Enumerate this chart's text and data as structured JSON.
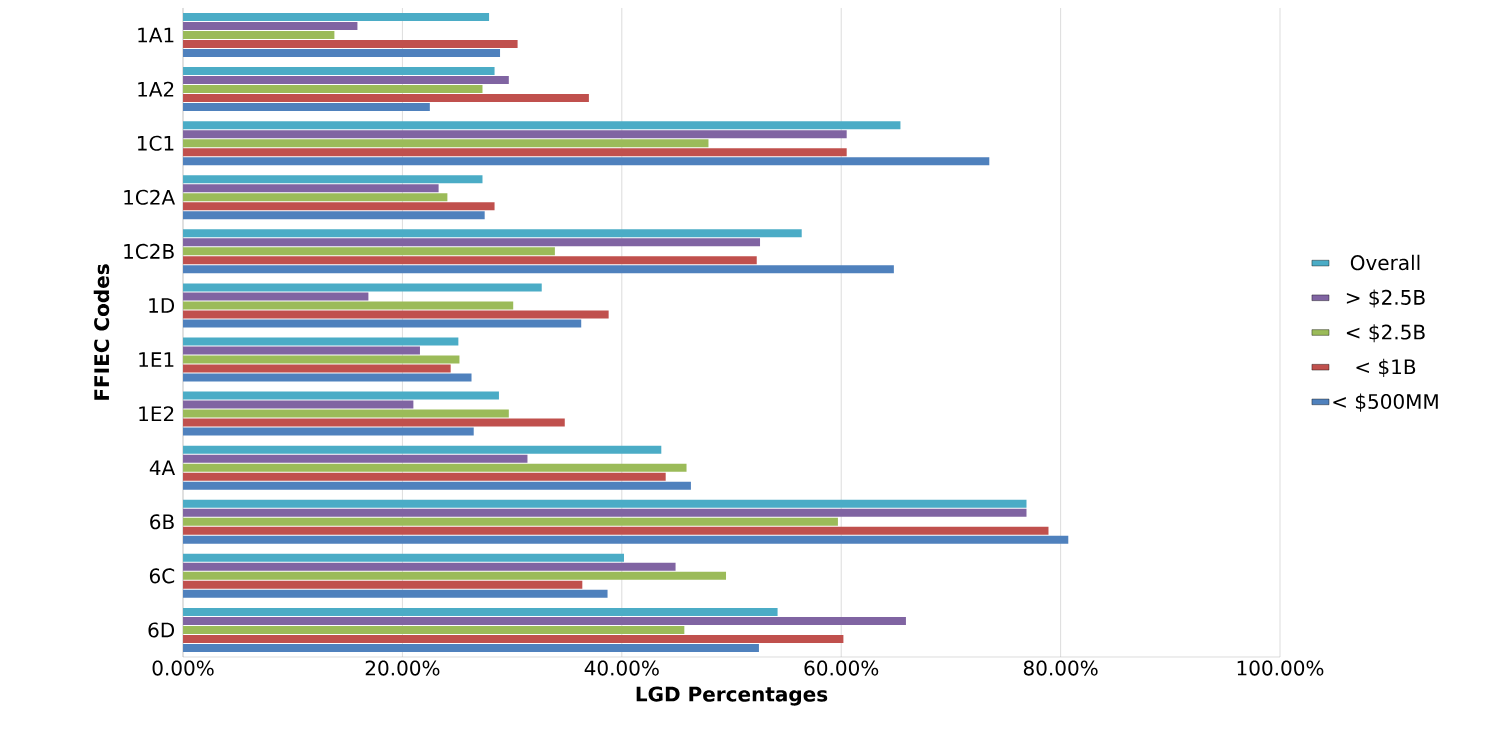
{
  "chart_data": {
    "type": "bar",
    "orientation": "horizontal",
    "xlabel": "LGD Percentages",
    "ylabel": "FFIEC Codes",
    "categories": [
      "1A1",
      "1A2",
      "1C1",
      "1C2A",
      "1C2B",
      "1D",
      "1E1",
      "1E2",
      "4A",
      "6B",
      "6C",
      "6D"
    ],
    "series": [
      {
        "name": "Overall",
        "color": "#4bacc6",
        "values": [
          27.9,
          28.4,
          65.4,
          27.3,
          56.4,
          32.7,
          25.1,
          28.8,
          43.6,
          76.9,
          40.2,
          54.2
        ]
      },
      {
        "name": "> $2.5B",
        "color": "#8064a2",
        "values": [
          15.9,
          29.7,
          60.5,
          23.3,
          52.6,
          16.9,
          21.6,
          21.0,
          31.4,
          76.9,
          44.9,
          65.9
        ]
      },
      {
        "name": "< $2.5B",
        "color": "#9bbb59",
        "values": [
          13.8,
          27.3,
          47.9,
          24.1,
          33.9,
          30.1,
          25.2,
          29.7,
          45.9,
          59.7,
          49.5,
          45.7
        ]
      },
      {
        "name": "< $1B",
        "color": "#c0504d",
        "values": [
          30.5,
          37.0,
          60.5,
          28.4,
          52.3,
          38.8,
          24.4,
          34.8,
          44.0,
          78.9,
          36.4,
          60.2
        ]
      },
      {
        "name": "< $500MM",
        "color": "#4f81bd",
        "values": [
          28.9,
          22.5,
          73.5,
          27.5,
          64.8,
          36.3,
          26.3,
          26.5,
          46.3,
          80.7,
          38.7,
          52.5
        ]
      }
    ],
    "xlim": [
      0,
      100
    ],
    "xticks": [
      {
        "value": 0,
        "label": "0.00%"
      },
      {
        "value": 20,
        "label": "20.00%"
      },
      {
        "value": 40,
        "label": "40.00%"
      },
      {
        "value": 60,
        "label": "60.00%"
      },
      {
        "value": 80,
        "label": "80.00%"
      },
      {
        "value": 100,
        "label": "100.00%"
      }
    ],
    "grid": "x",
    "legend": "right"
  }
}
